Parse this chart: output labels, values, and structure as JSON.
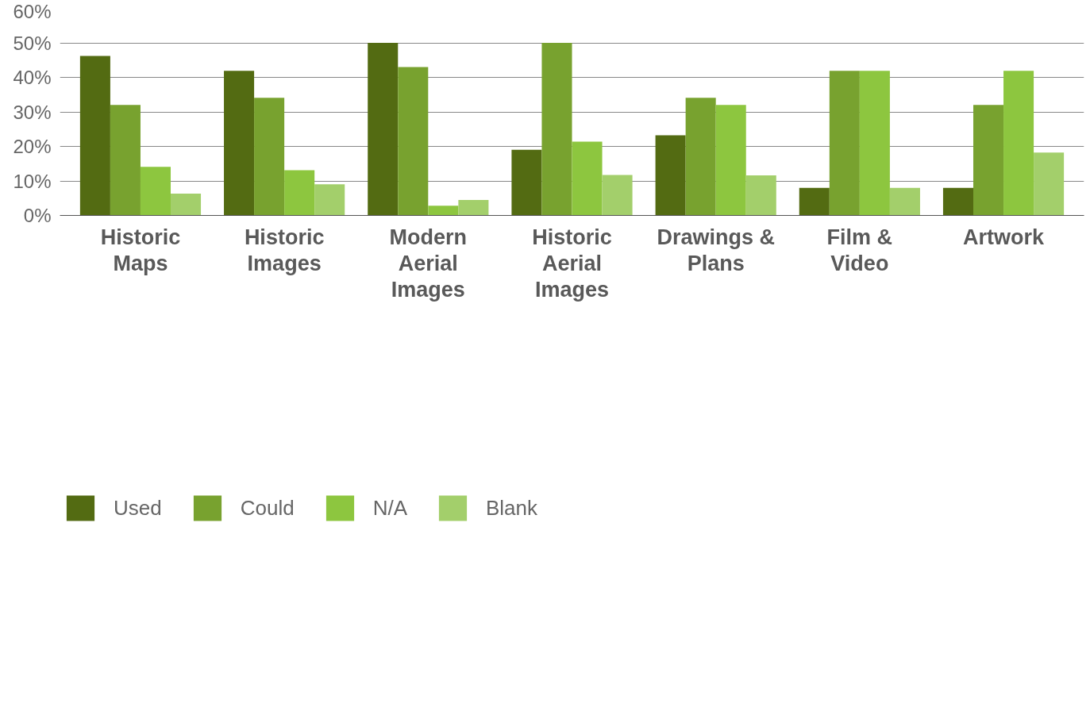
{
  "chart_data": {
    "type": "bar",
    "categories": [
      "Historic Maps",
      "Historic Images",
      "Modern Aerial Images",
      "Historic Aerial Images",
      "Drawings & Plans",
      "Film & Video",
      "Artwork"
    ],
    "series": [
      {
        "name": "Used",
        "color": "#536b12",
        "values": [
          46.2,
          41.9,
          50,
          19.0,
          23.2,
          8.0,
          8.0
        ]
      },
      {
        "name": "Could",
        "color": "#78a22f",
        "values": [
          32.0,
          34.1,
          43.0,
          50,
          34.1,
          41.9,
          32.0
        ]
      },
      {
        "name": "N/A",
        "color": "#8dc63f",
        "values": [
          14.1,
          13.1,
          2.8,
          21.4,
          32.0,
          41.9,
          41.9
        ]
      },
      {
        "name": "Blank",
        "color": "#a3cf6b",
        "values": [
          6.3,
          9.0,
          4.5,
          11.7,
          11.6,
          8.0,
          18.2
        ]
      }
    ],
    "ylim": [
      0,
      60
    ],
    "yticks": [
      {
        "value": 0,
        "label": "0%"
      },
      {
        "value": 10,
        "label": "10%"
      },
      {
        "value": 20,
        "label": "20%"
      },
      {
        "value": 30,
        "label": "30%"
      },
      {
        "value": 40,
        "label": "40%"
      },
      {
        "value": 50,
        "label": "50%"
      },
      {
        "value": 60,
        "label": "60%"
      }
    ],
    "grid": "y",
    "legend": "bottom left"
  }
}
